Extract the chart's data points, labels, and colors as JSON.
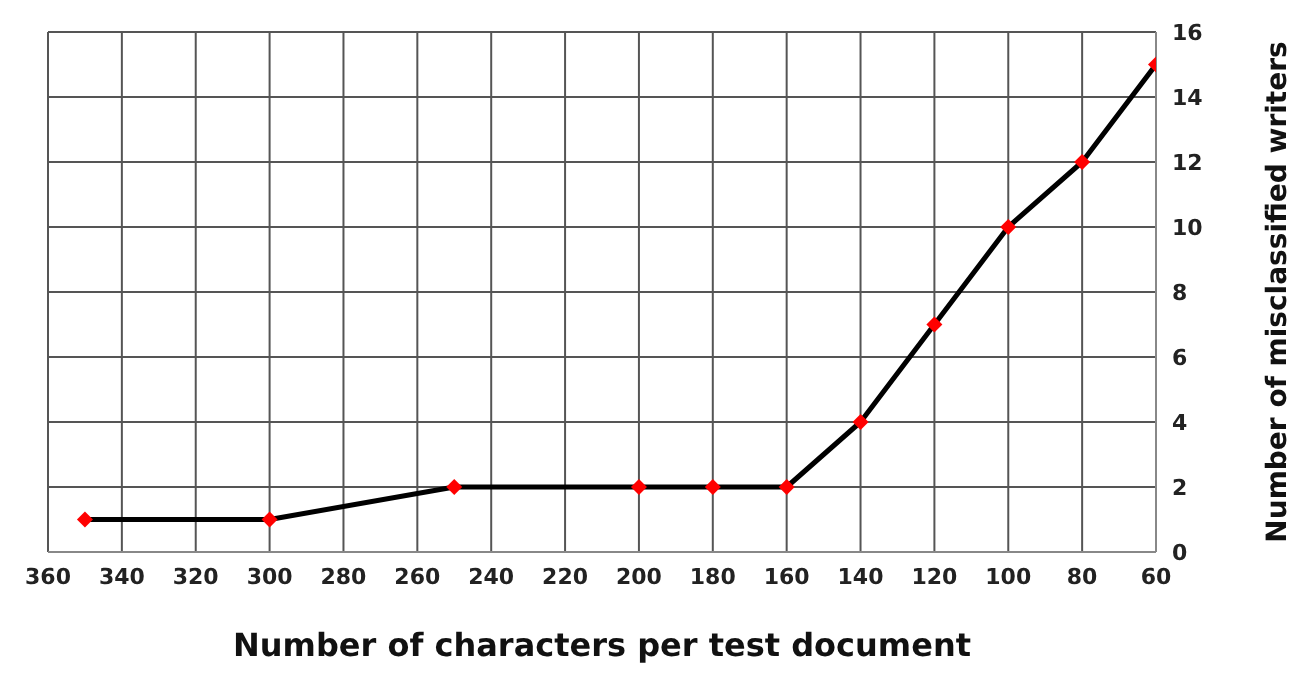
{
  "chart_data": {
    "type": "line",
    "xlabel": "Number of characters per test document",
    "ylabel": "Number of misclassified writers",
    "x": [
      350,
      300,
      250,
      200,
      180,
      160,
      140,
      120,
      100,
      80,
      60
    ],
    "series": [
      {
        "color": "#000000",
        "colors": [
          "#ff0000",
          "#ff0000",
          "#ff0000",
          "#ff0000",
          "#ff0000",
          "#ff0000",
          "#ff0000",
          "#ff0000",
          "#ff0000",
          "#ff0000",
          "#ff0000"
        ],
        "values": [
          1,
          1,
          2,
          2,
          2,
          2,
          4,
          7,
          10,
          12,
          15
        ]
      }
    ],
    "xlim": [
      360,
      60
    ],
    "xticks": [
      360,
      340,
      320,
      300,
      280,
      260,
      240,
      220,
      200,
      180,
      160,
      140,
      120,
      100,
      80,
      60
    ],
    "ylim": [
      0,
      16
    ],
    "yticks": [
      0,
      2,
      4,
      6,
      8,
      10,
      12,
      14,
      16
    ],
    "grid": true,
    "marker": "diamond",
    "line_style": "solid"
  }
}
